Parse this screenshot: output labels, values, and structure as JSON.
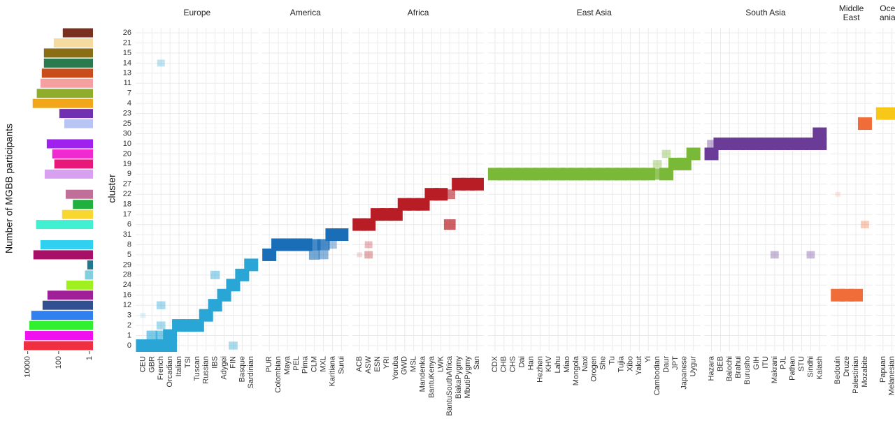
{
  "chart_data": {
    "type": "tile",
    "y_label": "cluster",
    "bar_axis_label": "Number of MGBB participants",
    "clusters": [
      26,
      21,
      15,
      14,
      13,
      11,
      7,
      4,
      23,
      25,
      30,
      10,
      20,
      19,
      9,
      27,
      22,
      18,
      17,
      6,
      31,
      8,
      5,
      29,
      28,
      24,
      16,
      12,
      3,
      2,
      1,
      0
    ],
    "bars": {
      "log": true,
      "xlim": [
        20000,
        0.6
      ],
      "xticks": [
        10000,
        100,
        1
      ],
      "values": [
        54,
        208,
        900,
        900,
        1230,
        1500,
        2600,
        4800,
        90,
        43,
        null,
        590,
        260,
        190,
        800,
        null,
        35,
        12,
        60,
        2900,
        null,
        1500,
        4300,
        1.4,
        2,
        32,
        530,
        1100,
        5900,
        8000,
        15000,
        18000
      ],
      "colors": [
        "#7a3020",
        "#f5dba0",
        "#8b6d14",
        "#2a7a50",
        "#c84c1c",
        "#f4a0a0",
        "#8fad2a",
        "#f2a71b",
        "#7030b0",
        "#b8c4f4",
        null,
        "#a020f0",
        "#f02ad0",
        "#e8187a",
        "#d8a0f0",
        null,
        "#c07098",
        "#20b040",
        "#f8d830",
        "#40f0d0",
        null,
        "#30d0f0",
        "#a81068",
        "#207890",
        "#80d0e0",
        "#a0f020",
        "#a02098",
        "#305090",
        "#3080f0",
        "#30f030",
        "#f010f0",
        "#f03040"
      ]
    },
    "facets": [
      {
        "name": "Europe",
        "color": "#29a6d6",
        "populations": [
          "CEU",
          "GBR",
          "French",
          "Orcadian",
          "Italian",
          "TSI",
          "Tuscan",
          "Russian",
          "IBS",
          "Adygei",
          "FIN",
          "Basque",
          "Sardinian"
        ],
        "cells": [
          {
            "population": "CEU",
            "cluster": 0,
            "value": 1
          },
          {
            "population": "CEU",
            "cluster": 3,
            "value": 0.15
          },
          {
            "population": "GBR",
            "cluster": 0,
            "value": 1
          },
          {
            "population": "GBR",
            "cluster": 1,
            "value": 0.6
          },
          {
            "population": "French",
            "cluster": 0,
            "value": 1
          },
          {
            "population": "French",
            "cluster": 1,
            "value": 0.6
          },
          {
            "population": "French",
            "cluster": 2,
            "value": 0.4
          },
          {
            "population": "French",
            "cluster": 12,
            "value": 0.4
          },
          {
            "population": "French",
            "cluster": 14,
            "value": 0.3
          },
          {
            "population": "Orcadian",
            "cluster": 0,
            "value": 1
          },
          {
            "population": "Orcadian",
            "cluster": 1,
            "value": 1
          },
          {
            "population": "Italian",
            "cluster": 2,
            "value": 1
          },
          {
            "population": "TSI",
            "cluster": 2,
            "value": 1
          },
          {
            "population": "Tuscan",
            "cluster": 2,
            "value": 1
          },
          {
            "population": "Russian",
            "cluster": 3,
            "value": 1
          },
          {
            "population": "IBS",
            "cluster": 12,
            "value": 1
          },
          {
            "population": "IBS",
            "cluster": 28,
            "value": 0.45
          },
          {
            "population": "Adygei",
            "cluster": 16,
            "value": 1
          },
          {
            "population": "FIN",
            "cluster": 24,
            "value": 1
          },
          {
            "population": "FIN",
            "cluster": 0,
            "value": 0.4
          },
          {
            "population": "Basque",
            "cluster": 28,
            "value": 1
          },
          {
            "population": "Sardinian",
            "cluster": 29,
            "value": 1
          }
        ]
      },
      {
        "name": "America",
        "color": "#1a6eb8",
        "populations": [
          "PUR",
          "Colombian",
          "Maya",
          "PEL",
          "Pima",
          "CLM",
          "MXL",
          "Karitiana",
          "Surui"
        ],
        "cells": [
          {
            "population": "PUR",
            "cluster": 5,
            "value": 1
          },
          {
            "population": "Colombian",
            "cluster": 8,
            "value": 1
          },
          {
            "population": "Maya",
            "cluster": 8,
            "value": 1
          },
          {
            "population": "PEL",
            "cluster": 8,
            "value": 1
          },
          {
            "population": "Pima",
            "cluster": 8,
            "value": 1
          },
          {
            "population": "CLM",
            "cluster": 8,
            "value": 0.8
          },
          {
            "population": "CLM",
            "cluster": 5,
            "value": 0.6
          },
          {
            "population": "MXL",
            "cluster": 8,
            "value": 0.8
          },
          {
            "population": "MXL",
            "cluster": 5,
            "value": 0.5
          },
          {
            "population": "Karitiana",
            "cluster": 31,
            "value": 1
          },
          {
            "population": "Karitiana",
            "cluster": 8,
            "value": 0.4
          },
          {
            "population": "Surui",
            "cluster": 31,
            "value": 1
          }
        ]
      },
      {
        "name": "Africa",
        "color": "#b81c24",
        "populations": [
          "ACB",
          "ASW",
          "ESN",
          "YRI",
          "Yoruba",
          "GWD",
          "MSL",
          "Mandenka",
          "BantuKenya",
          "LWK",
          "BantuSouthAfrica",
          "BiakaPygmy",
          "MbutiPygmy",
          "San"
        ],
        "cells": [
          {
            "population": "ACB",
            "cluster": 6,
            "value": 1
          },
          {
            "population": "ACB",
            "cluster": 5,
            "value": 0.15
          },
          {
            "population": "ASW",
            "cluster": 6,
            "value": 1
          },
          {
            "population": "ASW",
            "cluster": 5,
            "value": 0.35
          },
          {
            "population": "ASW",
            "cluster": 8,
            "value": 0.3
          },
          {
            "population": "ESN",
            "cluster": 17,
            "value": 1
          },
          {
            "population": "YRI",
            "cluster": 17,
            "value": 1
          },
          {
            "population": "Yoruba",
            "cluster": 17,
            "value": 1
          },
          {
            "population": "GWD",
            "cluster": 18,
            "value": 1
          },
          {
            "population": "MSL",
            "cluster": 18,
            "value": 1
          },
          {
            "population": "Mandenka",
            "cluster": 18,
            "value": 1
          },
          {
            "population": "BantuKenya",
            "cluster": 22,
            "value": 1
          },
          {
            "population": "LWK",
            "cluster": 22,
            "value": 1
          },
          {
            "population": "BantuSouthAfrica",
            "cluster": 22,
            "value": 0.6
          },
          {
            "population": "BantuSouthAfrica",
            "cluster": 6,
            "value": 0.7
          },
          {
            "population": "BiakaPygmy",
            "cluster": 27,
            "value": 1
          },
          {
            "population": "MbutiPygmy",
            "cluster": 27,
            "value": 1
          },
          {
            "population": "San",
            "cluster": 27,
            "value": 1
          }
        ]
      },
      {
        "name": "East Asia",
        "color": "#7ab838",
        "populations": [
          "CDX",
          "CHB",
          "CHS",
          "Dai",
          "Han",
          "Hezhen",
          "KHV",
          "Lahu",
          "Miao",
          "Mongola",
          "Naxi",
          "Orogen",
          "She",
          "Tu",
          "Tujia",
          "Xibo",
          "Yakut",
          "Yi",
          "Cambodian",
          "Daur",
          "JPT",
          "Japanese",
          "Uygur"
        ],
        "cells": [
          {
            "population": "CDX",
            "cluster": 9,
            "value": 1
          },
          {
            "population": "CHB",
            "cluster": 9,
            "value": 1
          },
          {
            "population": "CHS",
            "cluster": 9,
            "value": 1
          },
          {
            "population": "Dai",
            "cluster": 9,
            "value": 1
          },
          {
            "population": "Han",
            "cluster": 9,
            "value": 1
          },
          {
            "population": "Hezhen",
            "cluster": 9,
            "value": 1
          },
          {
            "population": "KHV",
            "cluster": 9,
            "value": 1
          },
          {
            "population": "Lahu",
            "cluster": 9,
            "value": 1
          },
          {
            "population": "Miao",
            "cluster": 9,
            "value": 1
          },
          {
            "population": "Mongola",
            "cluster": 9,
            "value": 1
          },
          {
            "population": "Naxi",
            "cluster": 9,
            "value": 1
          },
          {
            "population": "Orogen",
            "cluster": 9,
            "value": 1
          },
          {
            "population": "She",
            "cluster": 9,
            "value": 1
          },
          {
            "population": "Tu",
            "cluster": 9,
            "value": 1
          },
          {
            "population": "Tujia",
            "cluster": 9,
            "value": 1
          },
          {
            "population": "Xibo",
            "cluster": 9,
            "value": 1
          },
          {
            "population": "Yakut",
            "cluster": 9,
            "value": 1
          },
          {
            "population": "Yi",
            "cluster": 9,
            "value": 1
          },
          {
            "population": "Cambodian",
            "cluster": 9,
            "value": 0.8
          },
          {
            "population": "Cambodian",
            "cluster": 19,
            "value": 0.4
          },
          {
            "population": "Daur",
            "cluster": 9,
            "value": 1
          },
          {
            "population": "Daur",
            "cluster": 20,
            "value": 0.4
          },
          {
            "population": "JPT",
            "cluster": 19,
            "value": 1
          },
          {
            "population": "Japanese",
            "cluster": 19,
            "value": 1
          },
          {
            "population": "Uygur",
            "cluster": 20,
            "value": 1
          }
        ]
      },
      {
        "name": "South Asia",
        "color": "#6a3c98",
        "populations": [
          "Hazara",
          "BEB",
          "Balochi",
          "Brahui",
          "Burusho",
          "GIH",
          "ITU",
          "Makrani",
          "PJL",
          "Pathan",
          "STU",
          "Sindhi",
          "Kalash"
        ],
        "cells": [
          {
            "population": "Hazara",
            "cluster": 20,
            "value": 1
          },
          {
            "population": "Hazara",
            "cluster": 10,
            "value": 0.4
          },
          {
            "population": "BEB",
            "cluster": 10,
            "value": 1
          },
          {
            "population": "Balochi",
            "cluster": 10,
            "value": 1
          },
          {
            "population": "Brahui",
            "cluster": 10,
            "value": 1
          },
          {
            "population": "Burusho",
            "cluster": 10,
            "value": 1
          },
          {
            "population": "GIH",
            "cluster": 10,
            "value": 1
          },
          {
            "population": "ITU",
            "cluster": 10,
            "value": 1
          },
          {
            "population": "Makrani",
            "cluster": 10,
            "value": 1
          },
          {
            "population": "PJL",
            "cluster": 10,
            "value": 1
          },
          {
            "population": "Pathan",
            "cluster": 10,
            "value": 1
          },
          {
            "population": "STU",
            "cluster": 10,
            "value": 1
          },
          {
            "population": "Sindhi",
            "cluster": 10,
            "value": 1
          },
          {
            "population": "Makrani",
            "cluster": 5,
            "value": 0.35
          },
          {
            "population": "Sindhi",
            "cluster": 5,
            "value": 0.35
          },
          {
            "population": "Kalash",
            "cluster": 30,
            "value": 1
          },
          {
            "population": "Kalash",
            "cluster": 10,
            "value": 1
          }
        ]
      },
      {
        "name": "Middle\nEast",
        "color": "#f06c38",
        "populations": [
          "Bedouin",
          "Druze",
          "Palestinian",
          "Mozabite"
        ],
        "cells": [
          {
            "population": "Bedouin",
            "cluster": 16,
            "value": 1
          },
          {
            "population": "Druze",
            "cluster": 16,
            "value": 1
          },
          {
            "population": "Palestinian",
            "cluster": 16,
            "value": 1
          },
          {
            "population": "Bedouin",
            "cluster": 22,
            "value": 0.15
          },
          {
            "population": "Mozabite",
            "cluster": 25,
            "value": 1
          },
          {
            "population": "Mozabite",
            "cluster": 6,
            "value": 0.35
          }
        ]
      },
      {
        "name": "Oce\nania",
        "color": "#f8c818",
        "populations": [
          "Papuan",
          "Melanesian"
        ],
        "cells": [
          {
            "population": "Papuan",
            "cluster": 23,
            "value": 1
          },
          {
            "population": "Melanesian",
            "cluster": 23,
            "value": 1
          }
        ]
      }
    ]
  }
}
